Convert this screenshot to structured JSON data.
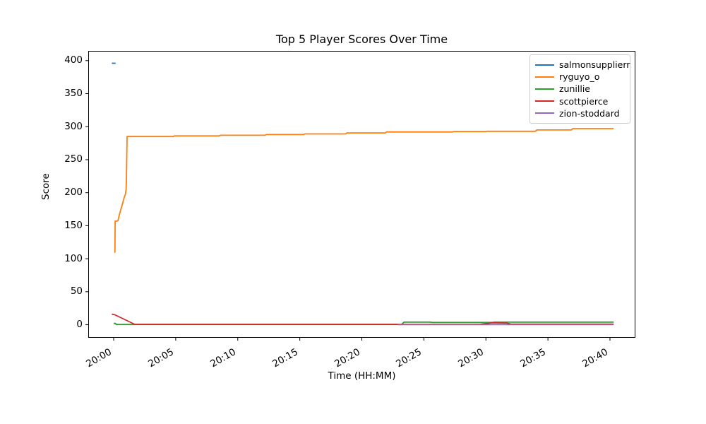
{
  "figure": {
    "title": "Top 5 Player Scores Over Time",
    "xlabel": "Time (HH:MM)",
    "ylabel": "Score"
  },
  "chart_data": {
    "type": "line",
    "title": "Top 5 Player Scores Over Time",
    "xlabel": "Time (HH:MM)",
    "ylabel": "Score",
    "x_unit": "minutes after 20:00",
    "grid": false,
    "legend_position": "upper right",
    "xlim": [
      -2.05,
      42.05
    ],
    "ylim": [
      -19.75,
      414.75
    ],
    "y_ticks": [
      0,
      50,
      100,
      150,
      200,
      250,
      300,
      350,
      400
    ],
    "x_ticks": [
      {
        "t": 0,
        "label": "20:00"
      },
      {
        "t": 5,
        "label": "20:05"
      },
      {
        "t": 10,
        "label": "20:10"
      },
      {
        "t": 15,
        "label": "20:15"
      },
      {
        "t": 20,
        "label": "20:20"
      },
      {
        "t": 25,
        "label": "20:25"
      },
      {
        "t": 30,
        "label": "20:30"
      },
      {
        "t": 35,
        "label": "20:35"
      },
      {
        "t": 40,
        "label": "20:40"
      }
    ],
    "series": [
      {
        "name": "salmonsupplierr",
        "color": "#1f77b4",
        "points": [
          [
            -0.15,
            396
          ],
          [
            0.15,
            396
          ]
        ]
      },
      {
        "name": "ryguyo_o",
        "color": "#ff7f0e",
        "points": [
          [
            0.05,
            110
          ],
          [
            0.1,
            110
          ],
          [
            0.12,
            157
          ],
          [
            0.3,
            157
          ],
          [
            0.35,
            158
          ],
          [
            0.45,
            166
          ],
          [
            0.6,
            176
          ],
          [
            0.75,
            186
          ],
          [
            0.85,
            193
          ],
          [
            0.95,
            198
          ],
          [
            1.0,
            205
          ],
          [
            1.02,
            215
          ],
          [
            1.08,
            285
          ],
          [
            4.8,
            285
          ],
          [
            4.9,
            286
          ],
          [
            8.5,
            286
          ],
          [
            8.6,
            287
          ],
          [
            12.2,
            287
          ],
          [
            12.3,
            288
          ],
          [
            15.3,
            288
          ],
          [
            15.4,
            289
          ],
          [
            18.7,
            289
          ],
          [
            18.8,
            290.5
          ],
          [
            21.9,
            290.5
          ],
          [
            22.0,
            292
          ],
          [
            27.3,
            292
          ],
          [
            27.4,
            292.5
          ],
          [
            30.0,
            292.5
          ],
          [
            30.1,
            293
          ],
          [
            34.0,
            293
          ],
          [
            34.1,
            295
          ],
          [
            36.9,
            295
          ],
          [
            37.0,
            297
          ],
          [
            40.3,
            297
          ]
        ]
      },
      {
        "name": "zunillie",
        "color": "#2ca02c",
        "points": [
          [
            0.0,
            2
          ],
          [
            0.15,
            2
          ],
          [
            0.2,
            0.4
          ],
          [
            23.2,
            0.4
          ],
          [
            23.4,
            4
          ],
          [
            25.5,
            4
          ],
          [
            25.7,
            3.5
          ],
          [
            30.5,
            3.5
          ],
          [
            30.7,
            4
          ],
          [
            40.3,
            4
          ]
        ]
      },
      {
        "name": "scottpierce",
        "color": "#d62728",
        "points": [
          [
            -0.15,
            16
          ],
          [
            0.1,
            15
          ],
          [
            1.7,
            0.6
          ],
          [
            29.5,
            0.6
          ],
          [
            30.5,
            2.8
          ],
          [
            31.7,
            2.5
          ],
          [
            32.0,
            1
          ],
          [
            40.3,
            1
          ]
        ]
      },
      {
        "name": "zion-stoddard",
        "color": "#9467bd",
        "points": [
          [
            22.9,
            0.2
          ],
          [
            40.3,
            0.2
          ]
        ]
      }
    ]
  },
  "style": {
    "axis_color": "#000000",
    "background": "#ffffff",
    "legend_border": "#cccccc"
  }
}
